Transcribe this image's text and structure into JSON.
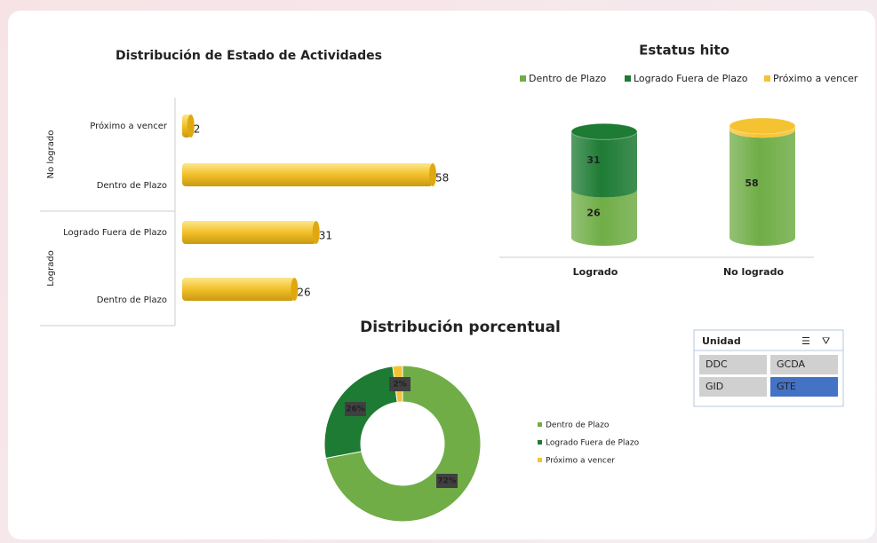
{
  "chart_data": [
    {
      "type": "bar",
      "orientation": "horizontal",
      "title": "Distribución de Estado de Actividades",
      "groups": [
        "No logrado",
        "No logrado",
        "Logrado",
        "Logrado"
      ],
      "categories": [
        "Próximo a vencer",
        "Dentro de Plazo",
        "Logrado Fuera de Plazo",
        "Dentro de Plazo"
      ],
      "values": [
        2,
        58,
        31,
        26
      ],
      "color": "#f2bf2a"
    },
    {
      "type": "bar",
      "stacked": true,
      "title": "Estatus hito",
      "legend": "top",
      "categories": [
        "Logrado",
        "No logrado"
      ],
      "series": [
        {
          "name": "Dentro de Plazo",
          "color": "#70ad47",
          "values": [
            26,
            58
          ]
        },
        {
          "name": "Logrado Fuera de Plazo",
          "color": "#1e7b34",
          "values": [
            31,
            null
          ]
        },
        {
          "name": "Próximo a vencer",
          "color": "#f5c231",
          "values": [
            null,
            2
          ]
        }
      ]
    },
    {
      "type": "doughnut",
      "title": "Distribución porcentual",
      "legend": "right",
      "categories": [
        "Dentro de Plazo",
        "Logrado Fuera de Plazo",
        "Próximo a vencer"
      ],
      "values": [
        72,
        26,
        2
      ],
      "value_labels": [
        "72%",
        "26%",
        "2%"
      ],
      "colors": [
        "#70ad47",
        "#1e7b34",
        "#f5c231"
      ]
    }
  ],
  "slicer": {
    "title": "Unidad",
    "items": [
      "DDC",
      "GCDA",
      "GID",
      "GTE"
    ],
    "selected": "GTE"
  }
}
